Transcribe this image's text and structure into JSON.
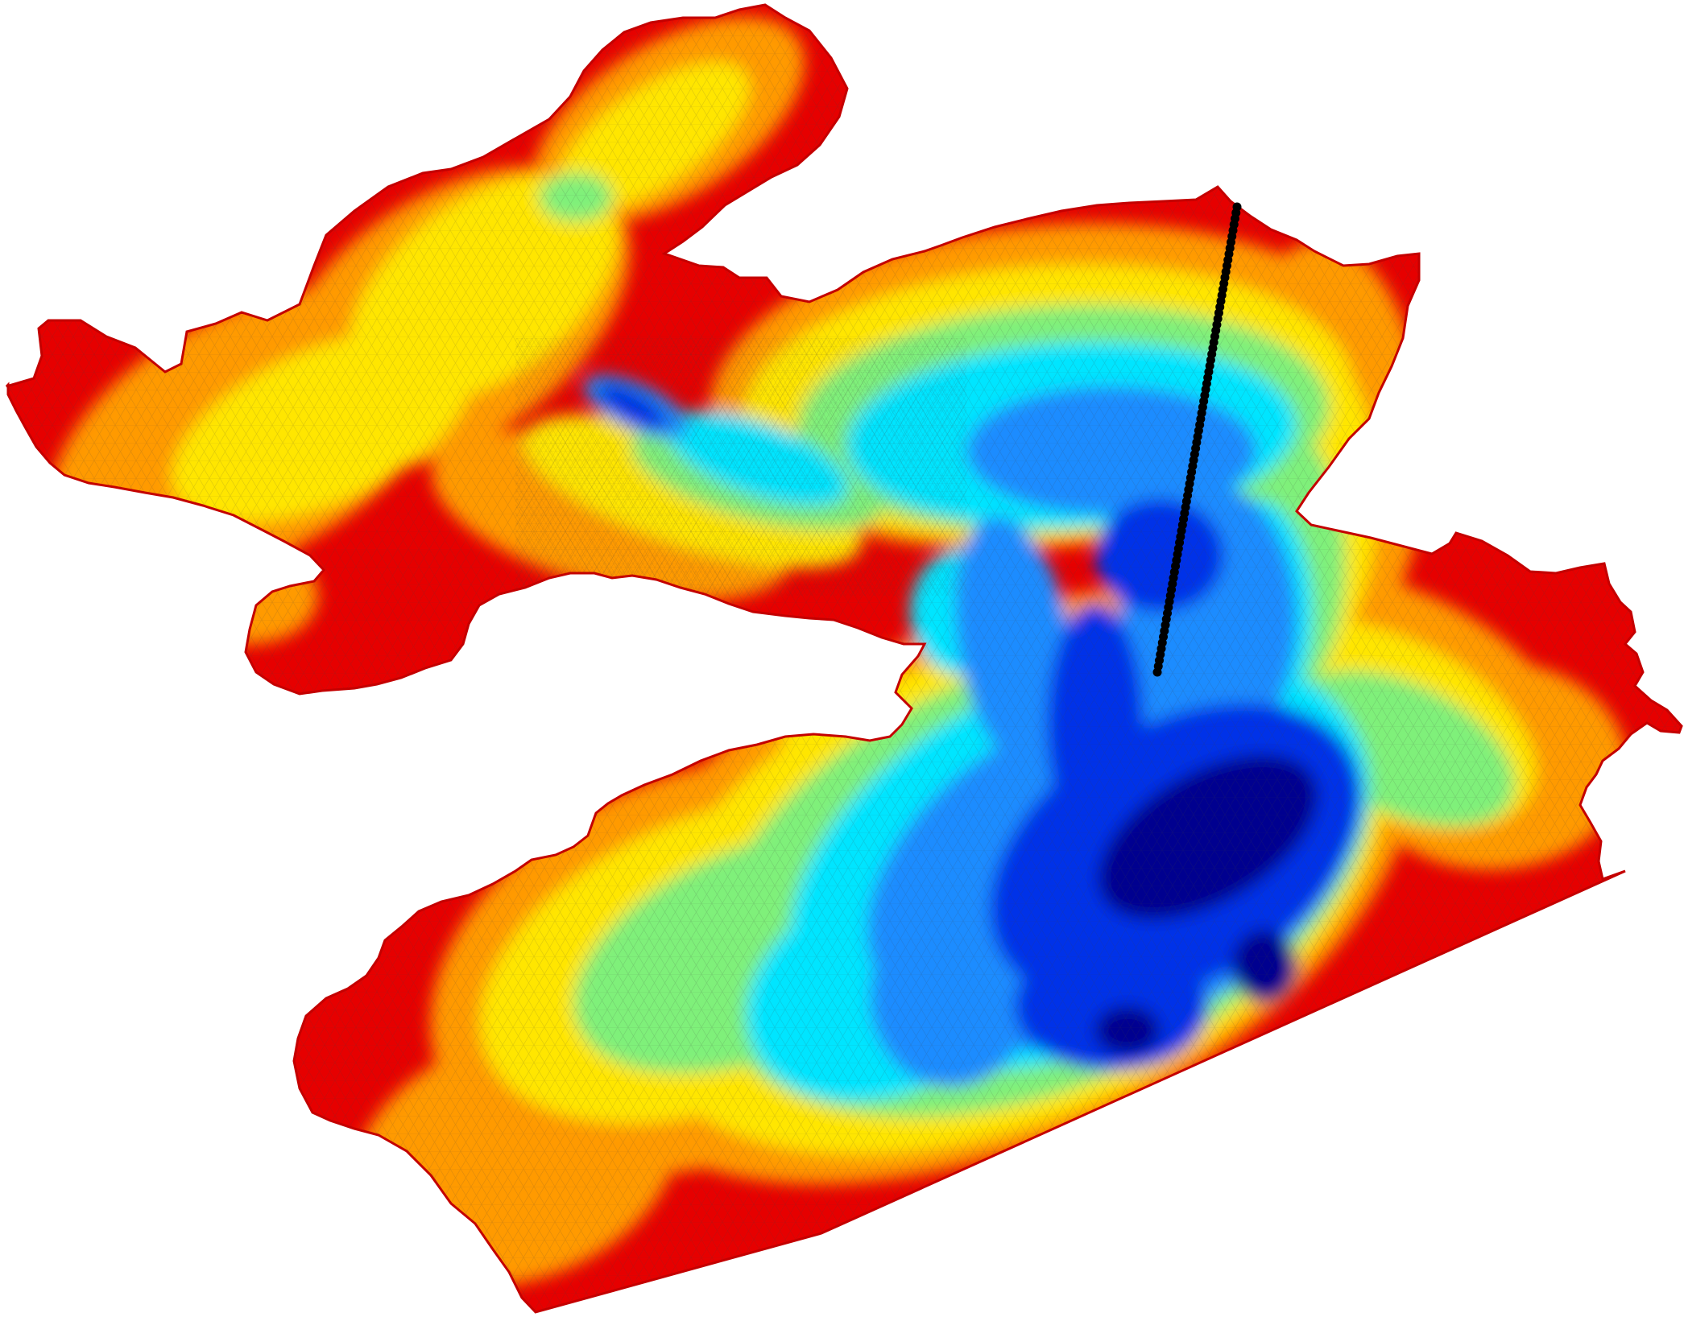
{
  "map": {
    "type": "bathymetry-mesh",
    "colormap": "jet",
    "colormap_direction": "deep-blue-to-shallow-red",
    "background": "#ffffff",
    "mesh_visible": true,
    "colors": {
      "deepest": "#00008f",
      "deep": "#0030e8",
      "mid_deep": "#1f8cff",
      "mid": "#00e5ff",
      "mid_shallow": "#7ff07a",
      "shallow": "#ffe600",
      "shallower": "#ff9a00",
      "shallowest": "#e60000"
    },
    "transect": {
      "marker_color": "#000000",
      "marker_shape": "circle",
      "point_count": 80
    }
  }
}
